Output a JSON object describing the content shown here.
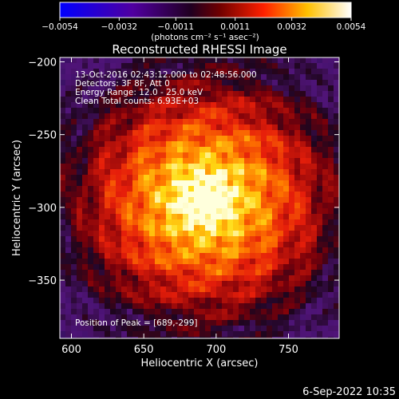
{
  "chart_data": {
    "type": "heatmap",
    "title": "Reconstructed RHESSI Image",
    "xlabel": "Heliocentric X (arcsec)",
    "ylabel": "Heliocentric Y (arcsec)",
    "xlim": [
      592,
      785
    ],
    "ylim": [
      -390,
      -197
    ],
    "x_ticks": [
      600,
      650,
      700,
      750
    ],
    "y_ticks": [
      -200,
      -250,
      -300,
      -350
    ],
    "x_tick_labels": [
      "600",
      "650",
      "700",
      "750"
    ],
    "y_tick_labels": [
      "−200",
      "−250",
      "−300",
      "−350"
    ],
    "colorbar": {
      "range": [
        -0.0054,
        0.0054
      ],
      "ticks": [
        -0.0054,
        -0.0032,
        -0.0011,
        0.0011,
        0.0032,
        0.0054
      ],
      "tick_labels": [
        "−0.0054",
        "−0.0032",
        "−0.0011",
        "0.0011",
        "0.0032",
        "0.0054"
      ],
      "units": "(photons cm⁻² s⁻¹ asec⁻²)",
      "colormap": [
        "#0000ff",
        "#000000",
        "#ff0000",
        "#ffff00",
        "#ffffff"
      ]
    },
    "info_lines": [
      "13-Oct-2016 02:43:12.000 to 02:48:56.000",
      "Detectors: 3F 8F, Att 0",
      "Energy Range: 12.0 - 25.0 keV",
      "Clean     Total counts: 6.93E+03"
    ],
    "peak_label": "Position of Peak = [689,-299]",
    "peak": {
      "x": 689,
      "y": -299
    }
  },
  "footer": {
    "date": "6-Sep-2022 10:35"
  }
}
